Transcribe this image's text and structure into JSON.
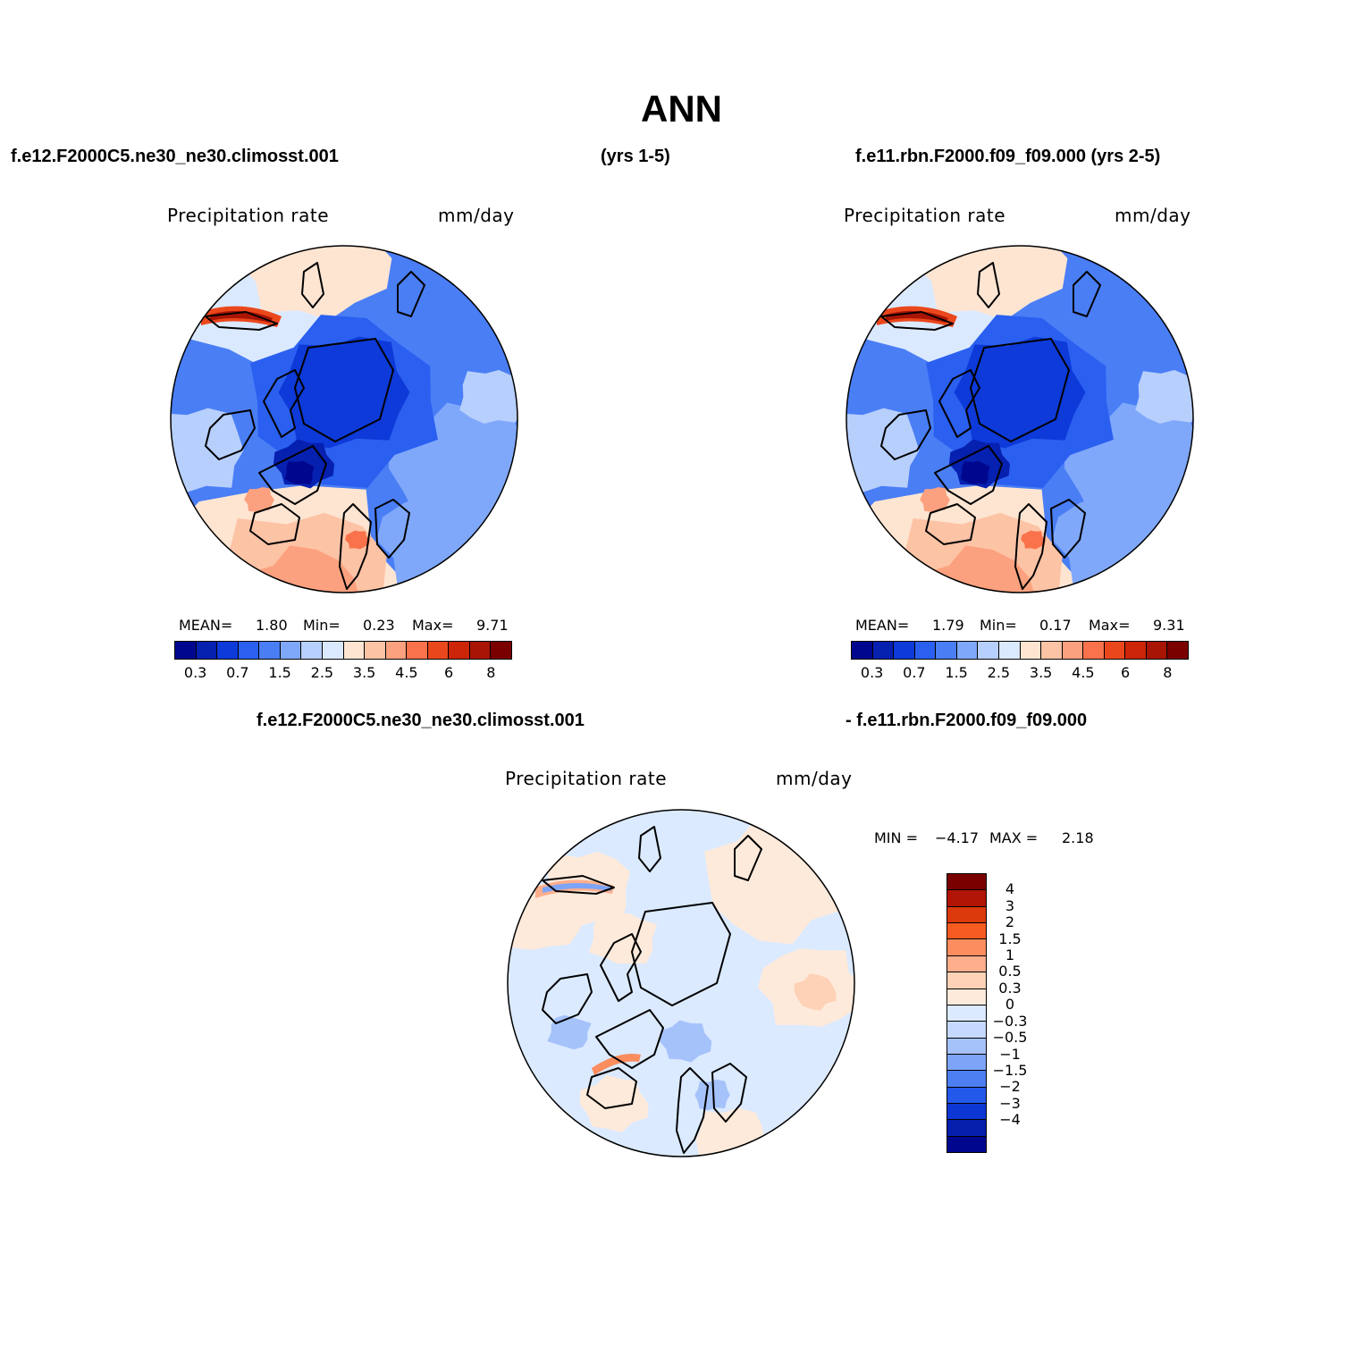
{
  "page": {
    "title": "ANN",
    "header_left": "f.e12.F2000C5.ne30_ne30.climosst.001",
    "header_center": "(yrs 1-5)",
    "header_right": "f.e11.rbn.F2000.f09_f09.000 (yrs 2-5)",
    "diff_header_left": "f.e12.F2000C5.ne30_ne30.climosst.001",
    "diff_header_right": "- f.e11.rbn.F2000.f09_f09.000"
  },
  "colors": {
    "abs_palette": [
      "#00078e",
      "#0620b0",
      "#0d3ad9",
      "#2a5ff0",
      "#4a7ef5",
      "#80a8fa",
      "#b7cffd",
      "#dbe9ff",
      "#fee5d2",
      "#fdc3a5",
      "#fca17f",
      "#f9724b",
      "#eb471c",
      "#cc2508",
      "#a81505",
      "#7a0000"
    ],
    "diff_palette": [
      "#7a0000",
      "#b21405",
      "#dc3a0c",
      "#f75b22",
      "#fb8d5e",
      "#fdae8c",
      "#fdd2b6",
      "#feeadb",
      "#dbeaff",
      "#c4d9fd",
      "#a5c2fb",
      "#7ea4f7",
      "#4d7ef2",
      "#2458eb",
      "#0d37d4",
      "#0620ad",
      "#00078e"
    ]
  },
  "chart_data": [
    {
      "type": "heatmap",
      "projection": "polar stereographic (north pole)",
      "title": "Precipitation rate",
      "units": "mm/day",
      "case": "f.e12.F2000C5.ne30_ne30.climosst.001",
      "stats": {
        "mean_label": "MEAN=",
        "mean": "1.80",
        "min_label": "Min=",
        "min": "0.23",
        "max_label": "Max=",
        "max": "9.71"
      },
      "colorbar_ticks": [
        "0.3",
        "0.7",
        "1.5",
        "2.5",
        "3.5",
        "4.5",
        "6",
        "8"
      ],
      "contour_levels": [
        0.2,
        0.3,
        0.5,
        0.7,
        1,
        1.5,
        2,
        2.5,
        3,
        3.5,
        4,
        4.5,
        5,
        6,
        7,
        8,
        9
      ]
    },
    {
      "type": "heatmap",
      "projection": "polar stereographic (north pole)",
      "title": "Precipitation rate",
      "units": "mm/day",
      "case": "f.e11.rbn.F2000.f09_f09.000",
      "stats": {
        "mean_label": "MEAN=",
        "mean": "1.79",
        "min_label": "Min=",
        "min": "0.17",
        "max_label": "Max=",
        "max": "9.31"
      },
      "colorbar_ticks": [
        "0.3",
        "0.7",
        "1.5",
        "2.5",
        "3.5",
        "4.5",
        "6",
        "8"
      ],
      "contour_levels": [
        0.2,
        0.3,
        0.5,
        0.7,
        1,
        1.5,
        2,
        2.5,
        3,
        3.5,
        4,
        4.5,
        5,
        6,
        7,
        8,
        9
      ]
    },
    {
      "type": "heatmap",
      "projection": "polar stereographic (north pole)",
      "title": "Precipitation rate",
      "units": "mm/day",
      "case": "difference",
      "stats": {
        "min_label": "MIN =",
        "min": "−4.17",
        "max_label": "MAX =",
        "max": "2.18"
      },
      "colorbar_ticks": [
        "4",
        "3",
        "2",
        "1.5",
        "1",
        "0.5",
        "0.3",
        "0",
        "−0.3",
        "−0.5",
        "−1",
        "−1.5",
        "−2",
        "−3",
        "−4"
      ],
      "contour_levels": [
        4,
        3,
        2,
        1.5,
        1,
        0.5,
        0.3,
        0,
        -0.3,
        -0.5,
        -1,
        -1.5,
        -2,
        -3,
        -4
      ]
    }
  ]
}
